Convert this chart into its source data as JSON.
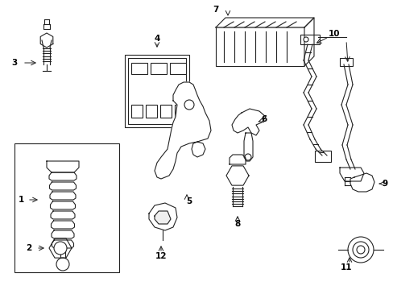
{
  "bg_color": "#ffffff",
  "line_color": "#222222",
  "text_color": "#000000",
  "figsize": [
    4.89,
    3.6
  ],
  "dpi": 100
}
